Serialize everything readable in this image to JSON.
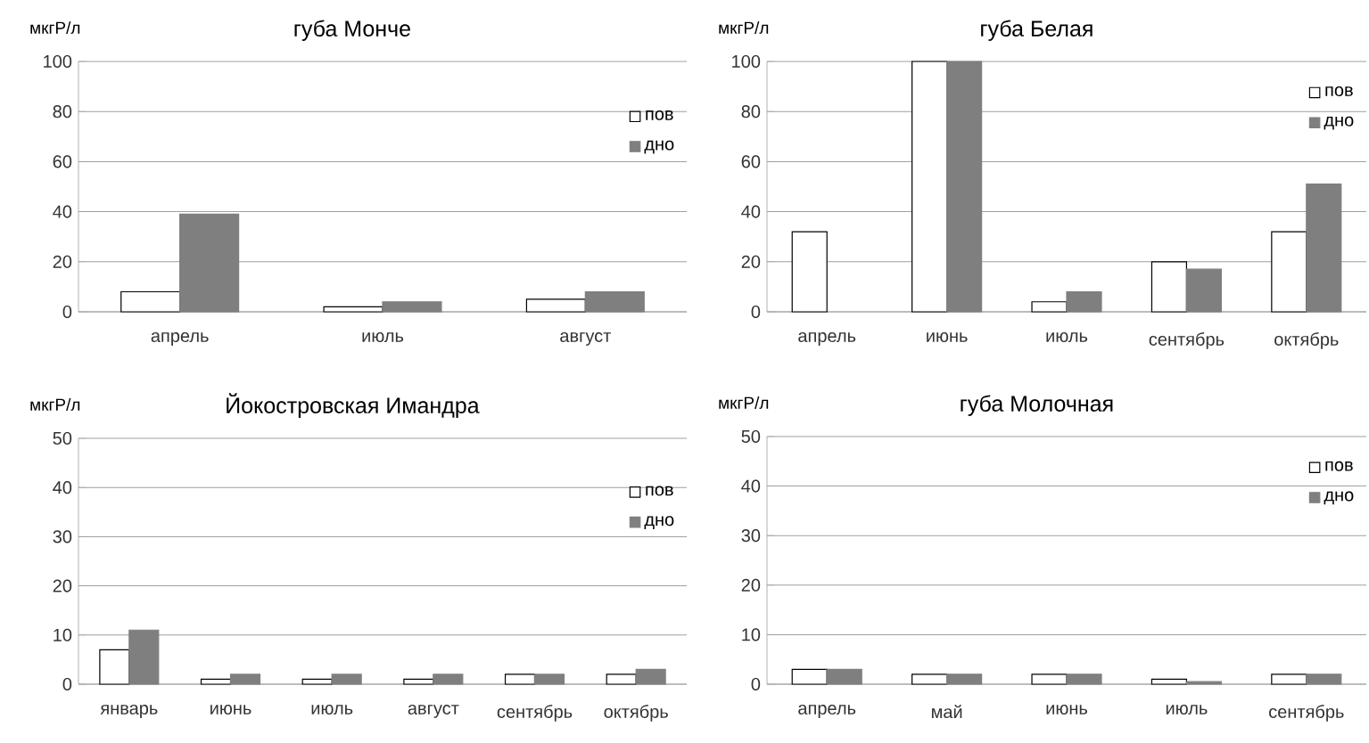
{
  "chart_data": [
    {
      "type": "bar",
      "title": "губа Монче",
      "ylabel": "мкгР/л",
      "categories": [
        "апрель",
        "июль",
        "август"
      ],
      "series": [
        {
          "name": "пов",
          "color": "#ffffff",
          "values": [
            8,
            2,
            5
          ]
        },
        {
          "name": "дно",
          "color": "#7f7f7f",
          "values": [
            39,
            4,
            8
          ]
        }
      ],
      "ylim": [
        0,
        100
      ],
      "yticks": [
        0,
        20,
        40,
        60,
        80,
        100
      ],
      "grid": "y",
      "legend": "right"
    },
    {
      "type": "bar",
      "title": "губа Белая",
      "ylabel": "мкгР/л",
      "categories": [
        "апрель",
        "июнь",
        "июль",
        "сентябрь",
        "октябрь"
      ],
      "series": [
        {
          "name": "пов",
          "color": "#ffffff",
          "values": [
            32,
            100,
            4,
            20,
            32
          ]
        },
        {
          "name": "дно",
          "color": "#7f7f7f",
          "values": [
            null,
            100,
            8,
            17,
            51
          ]
        }
      ],
      "ylim": [
        0,
        100
      ],
      "yticks": [
        0,
        20,
        40,
        60,
        80,
        100
      ],
      "grid": "y",
      "legend": "top right"
    },
    {
      "type": "bar",
      "title": "Йокостровская Имандра",
      "ylabel": "мкгР/л",
      "categories": [
        "январь",
        "июнь",
        "июль",
        "август",
        "сентябрь",
        "октябрь"
      ],
      "series": [
        {
          "name": "пов",
          "color": "#ffffff",
          "values": [
            7,
            1,
            1,
            1,
            2,
            2
          ]
        },
        {
          "name": "дно",
          "color": "#7f7f7f",
          "values": [
            11,
            2,
            2,
            2,
            2,
            3
          ]
        }
      ],
      "ylim": [
        0,
        50
      ],
      "yticks": [
        0,
        10,
        20,
        30,
        40,
        50
      ],
      "grid": "y",
      "legend": "right"
    },
    {
      "type": "bar",
      "title": "губа Молочная",
      "ylabel": "мкгР/л",
      "categories": [
        "апрель",
        "май",
        "июнь",
        "июль",
        "сентябрь"
      ],
      "series": [
        {
          "name": "пов",
          "color": "#ffffff",
          "values": [
            3,
            2,
            2,
            1,
            2
          ]
        },
        {
          "name": "дно",
          "color": "#7f7f7f",
          "values": [
            3,
            2,
            2,
            0.5,
            2
          ]
        }
      ],
      "ylim": [
        0,
        50
      ],
      "yticks": [
        0,
        10,
        20,
        30,
        40,
        50
      ],
      "grid": "y",
      "legend": "top right"
    }
  ]
}
